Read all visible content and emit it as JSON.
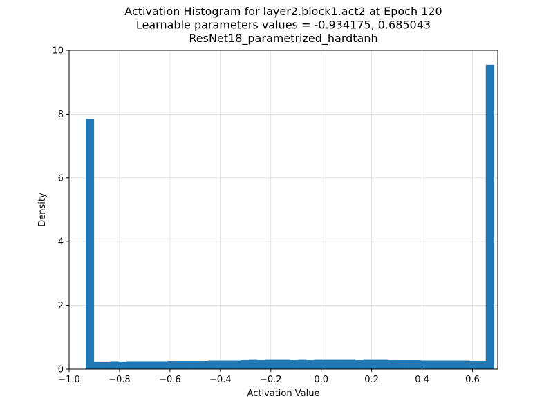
{
  "chart_data": {
    "type": "bar",
    "title_lines": [
      "Activation Histogram for layer2.block1.act2 at Epoch 120",
      "Learnable parameters values = -0.934175, 0.685043",
      "ResNet18_parametrized_hardtanh"
    ],
    "xlabel": "Activation Value",
    "ylabel": "Density",
    "xlim": [
      -1.0,
      0.7
    ],
    "ylim": [
      0,
      10
    ],
    "xticks": [
      -1.0,
      -0.8,
      -0.6,
      -0.4,
      -0.2,
      0.0,
      0.2,
      0.4,
      0.6
    ],
    "xtick_labels": [
      "−1.0",
      "−0.8",
      "−0.6",
      "−0.4",
      "−0.2",
      "0.0",
      "0.2",
      "0.4",
      "0.6"
    ],
    "yticks": [
      0,
      2,
      4,
      6,
      8,
      10
    ],
    "ytick_labels": [
      "0",
      "2",
      "4",
      "6",
      "8",
      "10"
    ],
    "grid": true,
    "bar_color": "#1f77b4",
    "bin_range": [
      -0.934175,
      0.685043
    ],
    "bin_count": 50,
    "densities": [
      7.85,
      0.24,
      0.24,
      0.25,
      0.24,
      0.25,
      0.25,
      0.25,
      0.25,
      0.25,
      0.26,
      0.26,
      0.26,
      0.26,
      0.26,
      0.27,
      0.27,
      0.27,
      0.27,
      0.28,
      0.29,
      0.28,
      0.29,
      0.29,
      0.29,
      0.28,
      0.29,
      0.28,
      0.29,
      0.29,
      0.29,
      0.29,
      0.29,
      0.28,
      0.29,
      0.29,
      0.29,
      0.28,
      0.28,
      0.28,
      0.28,
      0.27,
      0.27,
      0.27,
      0.27,
      0.27,
      0.27,
      0.26,
      0.26,
      9.55
    ]
  }
}
